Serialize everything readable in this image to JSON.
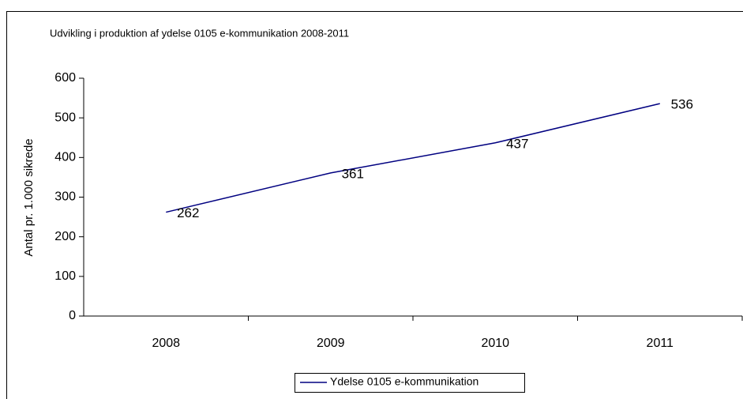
{
  "chart_data": {
    "type": "line",
    "title": "Udvikling i produktion af ydelse 0105 e-kommunikation 2008-2011",
    "y_label": "Antal pr. 1.000 sikrede",
    "categories": [
      "2008",
      "2009",
      "2010",
      "2011"
    ],
    "series": [
      {
        "name": "Ydelse 0105 e-kommunikation",
        "color": "#000080",
        "values": [
          262,
          361,
          437,
          536
        ]
      }
    ],
    "ylim": [
      0,
      600
    ],
    "yticks": [
      0,
      100,
      200,
      300,
      400,
      500,
      600
    ],
    "data_labels": true,
    "legend": "bottom",
    "grid": false
  }
}
